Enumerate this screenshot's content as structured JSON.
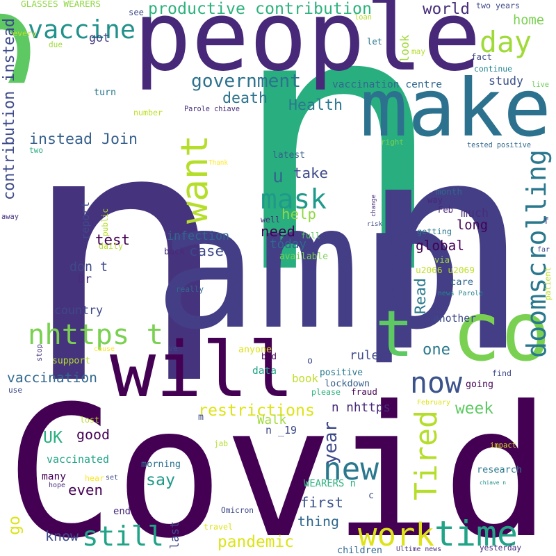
{
  "words": [
    "Covid",
    "n",
    "n",
    "n",
    "amp",
    "people",
    "s",
    "make",
    "will",
    "co",
    "t",
    "want",
    "vaccine",
    "day",
    "mask",
    "nhttps t",
    "doomscrolling",
    "now",
    "new",
    "Tired",
    "work",
    "time",
    "still",
    "productive contribution",
    "contribution instead",
    "world",
    "home",
    "government",
    "death",
    "Health",
    "study",
    "vaccination centre",
    "instead Join",
    "got",
    "GLASSES WEARERS",
    "two years",
    "loan",
    "see",
    "every",
    "due",
    "let",
    "look",
    "may",
    "fact",
    "continue",
    "live",
    "turn",
    "number",
    "Parole chiave",
    "tested positive",
    "right",
    "two",
    "Thank",
    "latest",
    "take",
    "u",
    "report",
    "public",
    "help",
    "infection",
    "test",
    "case",
    "need",
    "today",
    "available",
    "full",
    "well",
    "daily",
    "back",
    "change",
    "risk",
    "month",
    "way",
    "Feb",
    "much",
    "long",
    "getting",
    "global",
    "via",
    "u2066 u2069",
    "f",
    "far",
    "patient",
    "away",
    "don t",
    "Dr",
    "really",
    "Read",
    "care",
    "news Parole",
    "country",
    "another",
    "stop",
    "cause",
    "ve",
    "anyone",
    "bad",
    "rule",
    "one",
    "o",
    "support",
    "data",
    "positive",
    "find",
    "vaccination",
    "book",
    "lockdown",
    "fraud",
    "please",
    "use",
    "going",
    "restrictions",
    "n nhttps",
    "week",
    "February",
    "lost",
    "m",
    "Walk",
    "UK",
    "good",
    "n _19",
    "year",
    "impact",
    "jab",
    "say",
    "vaccinated",
    "morning",
    "research",
    "chiave n",
    "many",
    "set",
    "hear",
    "hope",
    "even",
    "WEARERS n",
    "first",
    "c",
    "end",
    "Omicron",
    "thing",
    "go",
    "last",
    "travel",
    "know",
    "pandemic",
    "children",
    "Ultime news",
    "yesterday"
  ]
}
